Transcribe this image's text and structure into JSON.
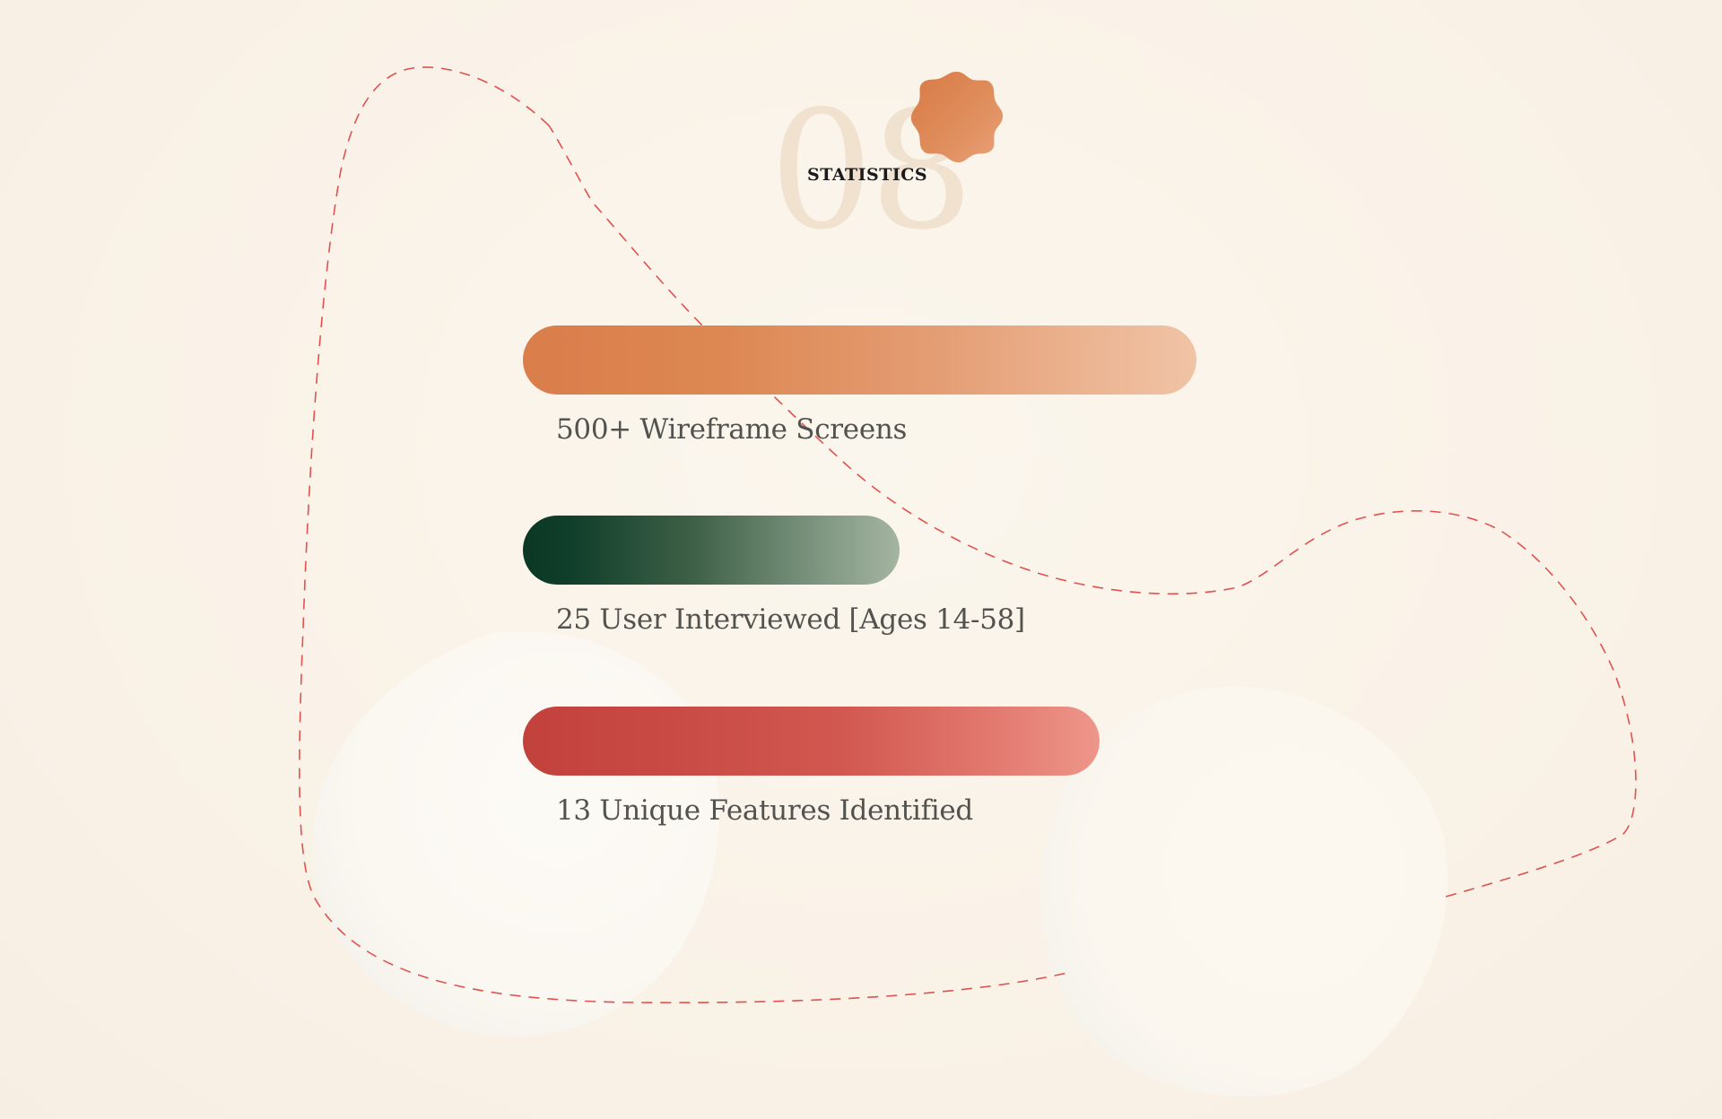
{
  "section": {
    "number": "08",
    "label": "STATISTICS"
  },
  "stats": [
    {
      "label": "500+ Wireframe Screens",
      "level": 1.0,
      "color_start": "#da7d4b",
      "color_end": "#f0c4a6"
    },
    {
      "label": "25 User Interviewed [Ages 14-58]",
      "level": 0.56,
      "color_start": "#0b3824",
      "color_end": "#a4b5a0"
    },
    {
      "label": "13 Unique Features Identified",
      "level": 0.86,
      "color_start": "#c2413d",
      "color_end": "#ee968a"
    }
  ],
  "colors": {
    "background": "#f9f2e8",
    "number_watermark": "#f1e2cf",
    "badge": "#e0864f",
    "dashed_path": "#e0524f",
    "blob": "#fbf8f2",
    "label_text": "#52524f",
    "section_label_text": "#1b1b1b"
  },
  "icons": {
    "badge": "wavy-badge-icon",
    "path": "dashed-curve-decoration",
    "blobs": "blob-shape-decoration"
  }
}
